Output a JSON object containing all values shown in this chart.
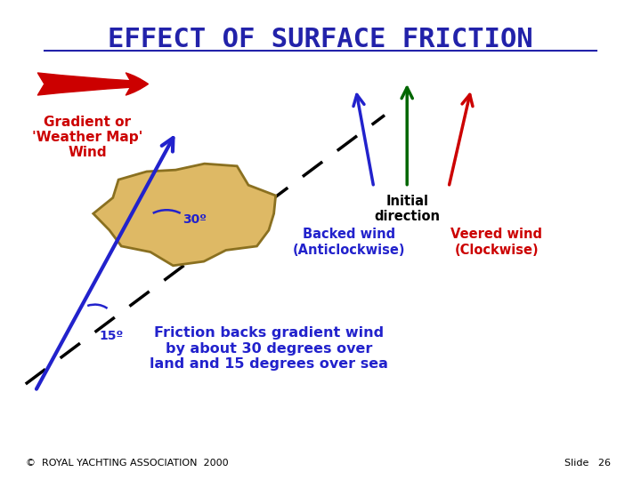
{
  "title": "EFFECT OF SURFACE FRICTION",
  "title_color": "#2222aa",
  "title_fontsize": 22,
  "bg_color": "#ffffff",
  "land_blob_color": "#deb965",
  "land_blob_edge": "#8a7020",
  "gradient_arrow_label": "Gradient or\n'Weather Map'\nWind",
  "gradient_arrow_color": "#cc0000",
  "blue_arrow_color": "#2222cc",
  "green_arrow_color": "#006600",
  "red_arrow2_color": "#cc0000",
  "angle_30_label": "30º",
  "angle_15_label": "15º",
  "backed_label": "Backed wind\n(Anticlockwise)",
  "veered_label": "Veered wind\n(Clockwise)",
  "initial_label": "Initial\ndirection",
  "friction_label": "Friction backs gradient wind\nby about 30 degrees over\nland and 15 degrees over sea",
  "copyright_label": "©  ROYAL YACHTING ASSOCIATION  2000",
  "slide_label": "Slide   26"
}
